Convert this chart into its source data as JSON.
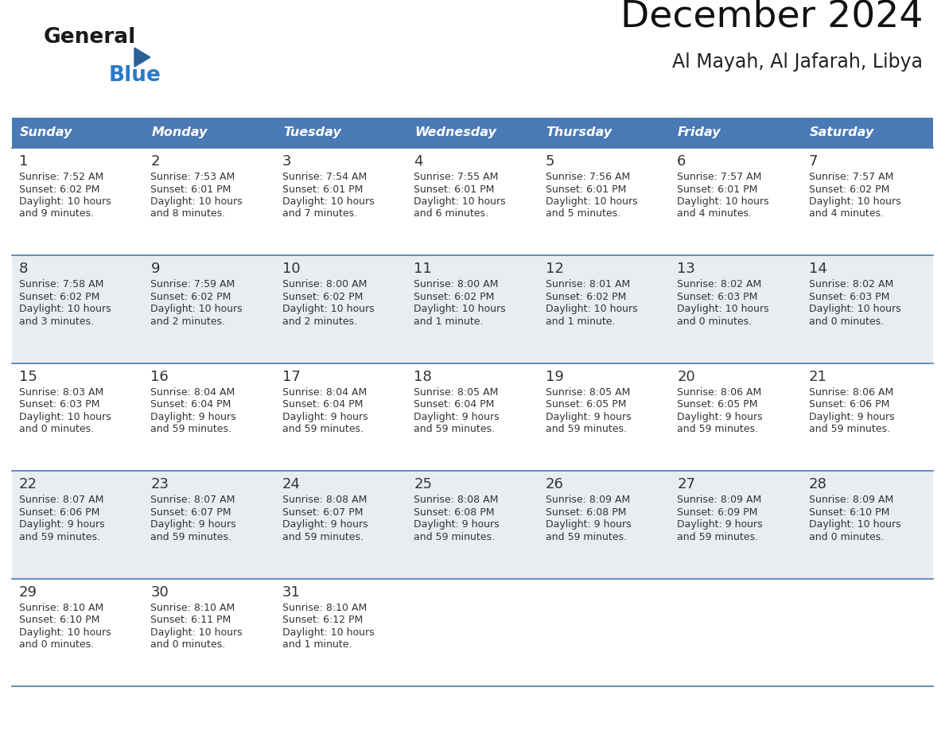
{
  "title": "December 2024",
  "subtitle": "Al Mayah, Al Jafarah, Libya",
  "header_color": "#4a7ab5",
  "header_text_color": "#ffffff",
  "cell_bg_white": "#ffffff",
  "cell_bg_gray": "#e8edf2",
  "border_color": "#4a7ab5",
  "text_color": "#333333",
  "day_names": [
    "Sunday",
    "Monday",
    "Tuesday",
    "Wednesday",
    "Thursday",
    "Friday",
    "Saturday"
  ],
  "days": [
    {
      "day": 1,
      "col": 0,
      "row": 0,
      "sunrise": "7:52 AM",
      "sunset": "6:02 PM",
      "daylight": "10 hours and 9 minutes."
    },
    {
      "day": 2,
      "col": 1,
      "row": 0,
      "sunrise": "7:53 AM",
      "sunset": "6:01 PM",
      "daylight": "10 hours and 8 minutes."
    },
    {
      "day": 3,
      "col": 2,
      "row": 0,
      "sunrise": "7:54 AM",
      "sunset": "6:01 PM",
      "daylight": "10 hours and 7 minutes."
    },
    {
      "day": 4,
      "col": 3,
      "row": 0,
      "sunrise": "7:55 AM",
      "sunset": "6:01 PM",
      "daylight": "10 hours and 6 minutes."
    },
    {
      "day": 5,
      "col": 4,
      "row": 0,
      "sunrise": "7:56 AM",
      "sunset": "6:01 PM",
      "daylight": "10 hours and 5 minutes."
    },
    {
      "day": 6,
      "col": 5,
      "row": 0,
      "sunrise": "7:57 AM",
      "sunset": "6:01 PM",
      "daylight": "10 hours and 4 minutes."
    },
    {
      "day": 7,
      "col": 6,
      "row": 0,
      "sunrise": "7:57 AM",
      "sunset": "6:02 PM",
      "daylight": "10 hours and 4 minutes."
    },
    {
      "day": 8,
      "col": 0,
      "row": 1,
      "sunrise": "7:58 AM",
      "sunset": "6:02 PM",
      "daylight": "10 hours and 3 minutes."
    },
    {
      "day": 9,
      "col": 1,
      "row": 1,
      "sunrise": "7:59 AM",
      "sunset": "6:02 PM",
      "daylight": "10 hours and 2 minutes."
    },
    {
      "day": 10,
      "col": 2,
      "row": 1,
      "sunrise": "8:00 AM",
      "sunset": "6:02 PM",
      "daylight": "10 hours and 2 minutes."
    },
    {
      "day": 11,
      "col": 3,
      "row": 1,
      "sunrise": "8:00 AM",
      "sunset": "6:02 PM",
      "daylight": "10 hours and 1 minute."
    },
    {
      "day": 12,
      "col": 4,
      "row": 1,
      "sunrise": "8:01 AM",
      "sunset": "6:02 PM",
      "daylight": "10 hours and 1 minute."
    },
    {
      "day": 13,
      "col": 5,
      "row": 1,
      "sunrise": "8:02 AM",
      "sunset": "6:03 PM",
      "daylight": "10 hours and 0 minutes."
    },
    {
      "day": 14,
      "col": 6,
      "row": 1,
      "sunrise": "8:02 AM",
      "sunset": "6:03 PM",
      "daylight": "10 hours and 0 minutes."
    },
    {
      "day": 15,
      "col": 0,
      "row": 2,
      "sunrise": "8:03 AM",
      "sunset": "6:03 PM",
      "daylight": "10 hours and 0 minutes."
    },
    {
      "day": 16,
      "col": 1,
      "row": 2,
      "sunrise": "8:04 AM",
      "sunset": "6:04 PM",
      "daylight": "9 hours and 59 minutes."
    },
    {
      "day": 17,
      "col": 2,
      "row": 2,
      "sunrise": "8:04 AM",
      "sunset": "6:04 PM",
      "daylight": "9 hours and 59 minutes."
    },
    {
      "day": 18,
      "col": 3,
      "row": 2,
      "sunrise": "8:05 AM",
      "sunset": "6:04 PM",
      "daylight": "9 hours and 59 minutes."
    },
    {
      "day": 19,
      "col": 4,
      "row": 2,
      "sunrise": "8:05 AM",
      "sunset": "6:05 PM",
      "daylight": "9 hours and 59 minutes."
    },
    {
      "day": 20,
      "col": 5,
      "row": 2,
      "sunrise": "8:06 AM",
      "sunset": "6:05 PM",
      "daylight": "9 hours and 59 minutes."
    },
    {
      "day": 21,
      "col": 6,
      "row": 2,
      "sunrise": "8:06 AM",
      "sunset": "6:06 PM",
      "daylight": "9 hours and 59 minutes."
    },
    {
      "day": 22,
      "col": 0,
      "row": 3,
      "sunrise": "8:07 AM",
      "sunset": "6:06 PM",
      "daylight": "9 hours and 59 minutes."
    },
    {
      "day": 23,
      "col": 1,
      "row": 3,
      "sunrise": "8:07 AM",
      "sunset": "6:07 PM",
      "daylight": "9 hours and 59 minutes."
    },
    {
      "day": 24,
      "col": 2,
      "row": 3,
      "sunrise": "8:08 AM",
      "sunset": "6:07 PM",
      "daylight": "9 hours and 59 minutes."
    },
    {
      "day": 25,
      "col": 3,
      "row": 3,
      "sunrise": "8:08 AM",
      "sunset": "6:08 PM",
      "daylight": "9 hours and 59 minutes."
    },
    {
      "day": 26,
      "col": 4,
      "row": 3,
      "sunrise": "8:09 AM",
      "sunset": "6:08 PM",
      "daylight": "9 hours and 59 minutes."
    },
    {
      "day": 27,
      "col": 5,
      "row": 3,
      "sunrise": "8:09 AM",
      "sunset": "6:09 PM",
      "daylight": "9 hours and 59 minutes."
    },
    {
      "day": 28,
      "col": 6,
      "row": 3,
      "sunrise": "8:09 AM",
      "sunset": "6:10 PM",
      "daylight": "10 hours and 0 minutes."
    },
    {
      "day": 29,
      "col": 0,
      "row": 4,
      "sunrise": "8:10 AM",
      "sunset": "6:10 PM",
      "daylight": "10 hours and 0 minutes."
    },
    {
      "day": 30,
      "col": 1,
      "row": 4,
      "sunrise": "8:10 AM",
      "sunset": "6:11 PM",
      "daylight": "10 hours and 0 minutes."
    },
    {
      "day": 31,
      "col": 2,
      "row": 4,
      "sunrise": "8:10 AM",
      "sunset": "6:12 PM",
      "daylight": "10 hours and 1 minute."
    }
  ],
  "logo_text1": "General",
  "logo_text2": "Blue",
  "logo_triangle_color": "#2a6099",
  "logo_text1_color": "#1a1a1a",
  "logo_text2_color": "#2a7ac8"
}
